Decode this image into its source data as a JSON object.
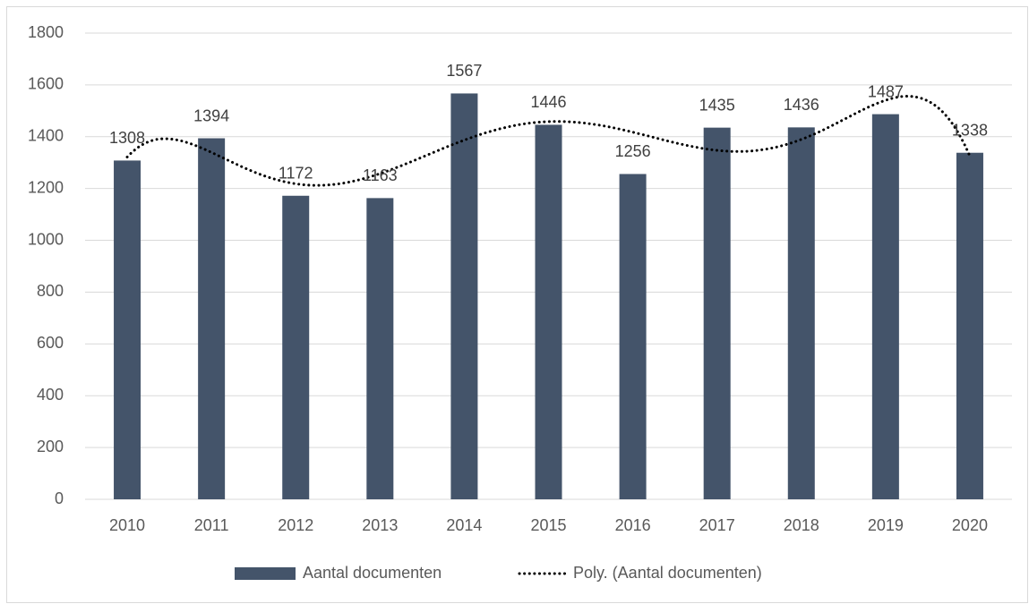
{
  "chart_data": {
    "type": "bar",
    "categories": [
      "2010",
      "2011",
      "2012",
      "2013",
      "2014",
      "2015",
      "2016",
      "2017",
      "2018",
      "2019",
      "2020"
    ],
    "series": [
      {
        "name": "Aantal documenten",
        "color": "#44546a",
        "values": [
          1308,
          1394,
          1172,
          1163,
          1567,
          1446,
          1256,
          1435,
          1436,
          1487,
          1338
        ]
      }
    ],
    "trendline": {
      "name": "Poly. (Aantal documenten)",
      "kind": "polynomial",
      "order": 6,
      "color": "#000000"
    },
    "ylim": [
      0,
      1800
    ],
    "yticks": [
      0,
      200,
      400,
      600,
      800,
      1000,
      1200,
      1400,
      1600,
      1800
    ],
    "grid": true,
    "data_labels": true,
    "legend": "bottom"
  }
}
